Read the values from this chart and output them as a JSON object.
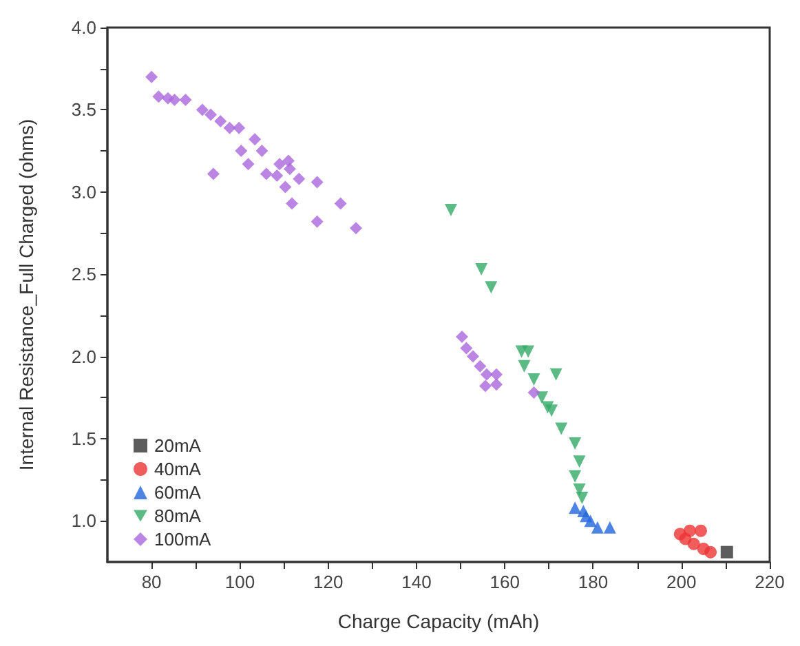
{
  "chart_data": {
    "type": "scatter",
    "xlabel": "Charge Capacity (mAh)",
    "ylabel": "Internal Resistance_Full Charged (ohms)",
    "xlim": [
      70,
      220
    ],
    "xticks": [
      80,
      {
        "value": 90,
        "label": null
      },
      100,
      {
        "value": 110,
        "label": null
      },
      120,
      {
        "value": 130,
        "label": null
      },
      140,
      {
        "value": 150,
        "label": null
      },
      160,
      {
        "value": 170,
        "label": null
      },
      180,
      {
        "value": 190,
        "label": null
      },
      200,
      {
        "value": 210,
        "label": null
      },
      220
    ],
    "ylim": [
      0.75,
      4.0
    ],
    "yticks": [
      {
        "value": 1.0,
        "label": "1.0"
      },
      {
        "value": 1.25,
        "label": null
      },
      1.5,
      {
        "value": 1.75,
        "label": null
      },
      {
        "value": 2.0,
        "label": "2.0"
      },
      {
        "value": 2.25,
        "label": null
      },
      2.5,
      {
        "value": 2.75,
        "label": null
      },
      {
        "value": 3.0,
        "label": "3.0"
      },
      {
        "value": 3.25,
        "label": null
      },
      3.5,
      {
        "value": 3.75,
        "label": null
      },
      {
        "value": 4.0,
        "label": "4.0"
      }
    ],
    "grid": false,
    "legend": "bottom left",
    "series": [
      {
        "name": "20mA",
        "color": "#333333",
        "marker": "square",
        "x": [
          210.3
        ],
        "values": [
          0.81
        ]
      },
      {
        "name": "40mA",
        "color": "#ee3333",
        "marker": "circle",
        "x": [
          199.7,
          201.9,
          204.4,
          202.8,
          205,
          206.6,
          200.9
        ],
        "values": [
          0.92,
          0.94,
          0.94,
          0.86,
          0.83,
          0.81,
          0.89
        ]
      },
      {
        "name": "60mA",
        "color": "#2266dd",
        "marker": "triangle",
        "x": [
          175.9,
          177.8,
          179.4,
          181,
          183.8,
          178.4
        ],
        "values": [
          1.08,
          1.06,
          1.0,
          0.96,
          0.96,
          1.03
        ]
      },
      {
        "name": "80mA",
        "color": "#33aa66",
        "marker": "triangle-down",
        "x": [
          147.8,
          154.7,
          156.9,
          163.8,
          165.3,
          164.4,
          171.6,
          168.4,
          170.6,
          172.8,
          175.9,
          176.9,
          175.9,
          176.9,
          177.5,
          169.7,
          166.6
        ],
        "values": [
          2.89,
          2.53,
          2.42,
          2.03,
          2.03,
          1.94,
          1.89,
          1.75,
          1.67,
          1.56,
          1.47,
          1.36,
          1.27,
          1.19,
          1.14,
          1.69,
          1.86
        ]
      },
      {
        "name": "100mA",
        "color": "#aa66dd",
        "marker": "diamond",
        "x": [
          80,
          81.6,
          83.7,
          85.2,
          87.7,
          91.5,
          93.4,
          95.6,
          97.7,
          99.8,
          94,
          100.3,
          103.4,
          105,
          101.9,
          106,
          109,
          111.3,
          113.4,
          110.3,
          111.8,
          117.5,
          117.5,
          122.8,
          126.3,
          108.4,
          111,
          150.3,
          151.3,
          152.8,
          154.4,
          155.9,
          158.1,
          155.6,
          158.1,
          166.6
        ],
        "values": [
          3.7,
          3.58,
          3.57,
          3.56,
          3.56,
          3.5,
          3.47,
          3.43,
          3.39,
          3.39,
          3.11,
          3.25,
          3.32,
          3.25,
          3.17,
          3.11,
          3.17,
          3.14,
          3.08,
          3.03,
          2.93,
          3.06,
          2.82,
          2.93,
          2.78,
          3.1,
          3.19,
          2.12,
          2.05,
          2.0,
          1.94,
          1.89,
          1.89,
          1.82,
          1.83,
          1.78
        ]
      }
    ]
  }
}
